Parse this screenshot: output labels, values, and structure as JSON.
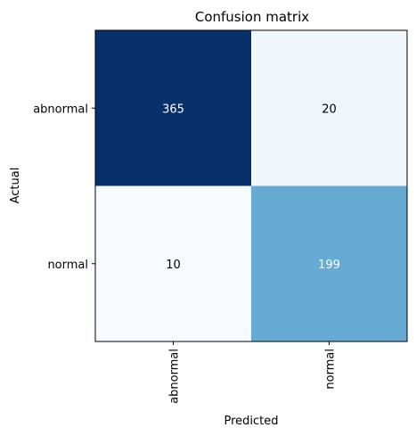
{
  "chart_data": {
    "type": "heatmap",
    "title": "Confusion matrix",
    "xlabel": "Predicted",
    "ylabel": "Actual",
    "x_categories": [
      "abnormal",
      "normal"
    ],
    "y_categories": [
      "abnormal",
      "normal"
    ],
    "values": [
      [
        365,
        20
      ],
      [
        10,
        199
      ]
    ],
    "colormap": "Blues",
    "value_range": [
      10,
      365
    ],
    "grid": false,
    "legend": "none",
    "colors": {
      "low": "#f7fbff",
      "mid": "#62a7d2",
      "high": "#08306b",
      "text_dark": "#000000",
      "text_light": "#ffffff"
    }
  }
}
